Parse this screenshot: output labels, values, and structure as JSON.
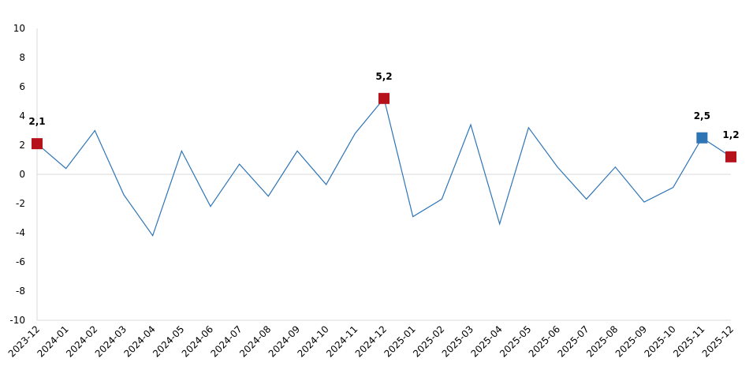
{
  "chart_data": {
    "type": "line",
    "categories": [
      "2023-12",
      "2024-01",
      "2024-02",
      "2024-03",
      "2024-04",
      "2024-05",
      "2024-06",
      "2024-07",
      "2024-08",
      "2024-09",
      "2024-10",
      "2024-11",
      "2024-12",
      "2025-01",
      "2025-02",
      "2025-03",
      "2025-04",
      "2025-05",
      "2025-06",
      "2025-07",
      "2025-08",
      "2025-09",
      "2025-10",
      "2025-11",
      "2025-12"
    ],
    "series": [
      {
        "color": "#2e75b6",
        "values": [
          2.1,
          0.4,
          3.0,
          -1.4,
          -4.2,
          1.6,
          -2.2,
          0.7,
          -1.5,
          1.6,
          -0.7,
          2.8,
          5.2,
          -2.9,
          -1.7,
          3.4,
          -3.4,
          3.2,
          0.5,
          -1.7,
          0.5,
          -1.9,
          -0.9,
          2.5,
          1.2
        ],
        "value_labels": [
          "2,1",
          null,
          null,
          null,
          null,
          null,
          null,
          null,
          null,
          null,
          null,
          null,
          "5,2",
          null,
          null,
          null,
          null,
          null,
          null,
          null,
          null,
          null,
          null,
          "2,5",
          "1,2"
        ],
        "marker_colors": [
          "#b5121b",
          null,
          null,
          null,
          null,
          null,
          null,
          null,
          null,
          null,
          null,
          null,
          "#b5121b",
          null,
          null,
          null,
          null,
          null,
          null,
          null,
          null,
          null,
          null,
          "#2e75b6",
          "#b5121b"
        ]
      }
    ],
    "ylim": [
      -10,
      10
    ],
    "yticks": [
      -10,
      -8,
      -6,
      -4,
      -2,
      0,
      2,
      4,
      6,
      8,
      10
    ],
    "zero_line": true
  }
}
